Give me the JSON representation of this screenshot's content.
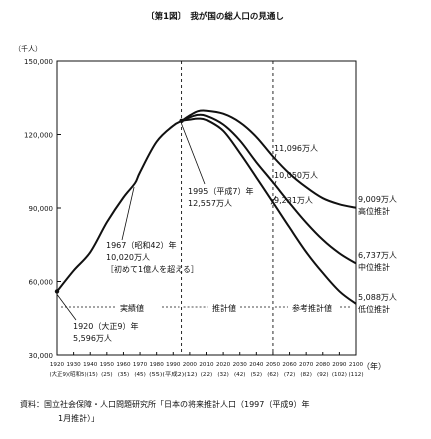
{
  "chart_data": {
    "type": "line",
    "title": "〔第1図〕　我が国の総人口の見通し",
    "yunit": "（千人）",
    "xunit": "（年）",
    "ylim": [
      30000,
      150000
    ],
    "yticks": [
      "150,000",
      "120,000",
      "90,000",
      "60,000",
      "30,000"
    ],
    "yticks_values": [
      150000,
      120000,
      90000,
      60000,
      30000
    ],
    "xlim": [
      1920,
      2100
    ],
    "x_years": [
      1920,
      1930,
      1940,
      1950,
      1960,
      1970,
      1980,
      1990,
      2000,
      2010,
      2020,
      2030,
      2040,
      2050,
      2060,
      2070,
      2080,
      2090,
      2100
    ],
    "x_labels_top": [
      "1920",
      "1930",
      "1940",
      "1950",
      "1960",
      "1970",
      "1980",
      "1990",
      "2000",
      "2010",
      "2020",
      "2030",
      "2040",
      "2050",
      "2060",
      "2070",
      "2080",
      "2090",
      "2100"
    ],
    "x_labels_bottom": [
      "(大正9)",
      "(昭和5)",
      "(15)",
      "(25)",
      "(35)",
      "(45)",
      "(55)",
      "(平成2)",
      "(12)",
      "(22)",
      "(32)",
      "(42)",
      "(52)",
      "(62)",
      "(72)",
      "(82)",
      "(92)",
      "(102)",
      "(112)"
    ],
    "x_label_segments": [
      "(大正9)(昭和5)(15)",
      "(25)",
      "(35)",
      "(45)",
      "(55)(平成2)(12)",
      "(22)",
      "(32)",
      "(42)",
      "(52)",
      "(62)",
      "(72)",
      "(82)",
      "(92)",
      "(102)",
      "(112)"
    ],
    "dividers": [
      1995,
      2050
    ],
    "regions": [
      "実績値",
      "推計値",
      "参考推計値"
    ],
    "series": [
      {
        "name": "高位推計",
        "x": [
          1920,
          1930,
          1940,
          1950,
          1960,
          1967,
          1970,
          1980,
          1990,
          1995,
          2000,
          2005,
          2010,
          2020,
          2030,
          2040,
          2050,
          2060,
          2070,
          2080,
          2090,
          2100
        ],
        "y": [
          55963,
          64450,
          71933,
          84115,
          94302,
          100196,
          104665,
          117060,
          123611,
          125570,
          127800,
          129500,
          129700,
          128500,
          125000,
          119000,
          111000,
          104000,
          98500,
          94000,
          91500,
          90090
        ]
      },
      {
        "name": "中位推計",
        "x": [
          1995,
          2000,
          2005,
          2010,
          2020,
          2030,
          2040,
          2050,
          2060,
          2070,
          2080,
          2090,
          2100
        ],
        "y": [
          125570,
          127000,
          128000,
          127600,
          124100,
          117600,
          108700,
          100500,
          92000,
          84000,
          77000,
          71500,
          67370
        ]
      },
      {
        "name": "低位推計",
        "x": [
          1995,
          2000,
          2005,
          2010,
          2020,
          2030,
          2040,
          2050,
          2060,
          2070,
          2080,
          2090,
          2100
        ],
        "y": [
          125570,
          126100,
          126500,
          125900,
          121500,
          112500,
          102500,
          92310,
          82000,
          72000,
          63500,
          56000,
          50880
        ]
      }
    ],
    "annotations": {
      "p1920": [
        "1920（大正9）年",
        "5,596万人"
      ],
      "p1967": [
        "1967（昭和42）年",
        "10,020万人",
        "［初めて1億人を超える］"
      ],
      "p1995": [
        "1995（平成7）年",
        "12,557万人"
      ],
      "high2050": "11,096万人",
      "mid2050": "10,050万人",
      "low2050": "9,231万人",
      "high2100": [
        "9,009万人",
        "高位推計"
      ],
      "mid2100": [
        "6,737万人",
        "中位推計"
      ],
      "low2100": [
        "5,088万人",
        "低位推計"
      ]
    },
    "source": [
      "資料：国立社会保障・人口問題研究所「日本の将来推計人口（1997（平成9）年",
      "1月推計）」"
    ]
  }
}
